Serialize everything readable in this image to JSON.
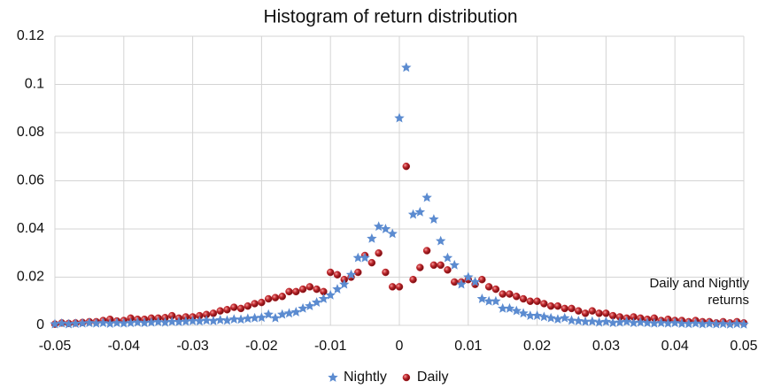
{
  "chart_data": {
    "type": "scatter",
    "title": "Histogram of return distribution",
    "annotation": [
      "Daily and Nightly",
      "returns"
    ],
    "x": [
      -0.05,
      -0.049,
      -0.048,
      -0.047,
      -0.046,
      -0.045,
      -0.044,
      -0.043,
      -0.042,
      -0.041,
      -0.04,
      -0.039,
      -0.038,
      -0.037,
      -0.036,
      -0.035,
      -0.034,
      -0.033,
      -0.032,
      -0.031,
      -0.03,
      -0.029,
      -0.028,
      -0.027,
      -0.026,
      -0.025,
      -0.024,
      -0.023,
      -0.022,
      -0.021,
      -0.02,
      -0.019,
      -0.018,
      -0.017,
      -0.016,
      -0.015,
      -0.014,
      -0.013,
      -0.012,
      -0.011,
      -0.01,
      -0.009,
      -0.008,
      -0.007,
      -0.006,
      -0.005,
      -0.004,
      -0.003,
      -0.002,
      -0.001,
      0,
      0.001,
      0.002,
      0.003,
      0.004,
      0.005,
      0.006,
      0.007,
      0.008,
      0.009,
      0.01,
      0.011,
      0.012,
      0.013,
      0.014,
      0.015,
      0.016,
      0.017,
      0.018,
      0.019,
      0.02,
      0.021,
      0.022,
      0.023,
      0.024,
      0.025,
      0.026,
      0.027,
      0.028,
      0.029,
      0.03,
      0.031,
      0.032,
      0.033,
      0.034,
      0.035,
      0.036,
      0.037,
      0.038,
      0.039,
      0.04,
      0.041,
      0.042,
      0.043,
      0.044,
      0.045,
      0.046,
      0.047,
      0.048,
      0.049,
      0.05
    ],
    "series": [
      {
        "name": "Nightly",
        "color": "#5b8bd0",
        "marker": "star",
        "values": [
          0.0005,
          0.0008,
          0.0005,
          0.0007,
          0.0008,
          0.001,
          0.0008,
          0.001,
          0.0007,
          0.001,
          0.0008,
          0.001,
          0.0012,
          0.001,
          0.0012,
          0.0014,
          0.0012,
          0.0015,
          0.0014,
          0.0016,
          0.0018,
          0.0017,
          0.002,
          0.0018,
          0.0022,
          0.002,
          0.0025,
          0.0024,
          0.0028,
          0.003,
          0.0032,
          0.0045,
          0.003,
          0.0045,
          0.005,
          0.0055,
          0.007,
          0.008,
          0.0095,
          0.011,
          0.0125,
          0.015,
          0.017,
          0.021,
          0.028,
          0.028,
          0.036,
          0.041,
          0.04,
          0.038,
          0.086,
          0.107,
          0.046,
          0.047,
          0.053,
          0.044,
          0.035,
          0.028,
          0.025,
          0.017,
          0.02,
          0.018,
          0.011,
          0.01,
          0.01,
          0.007,
          0.007,
          0.006,
          0.005,
          0.004,
          0.004,
          0.0035,
          0.003,
          0.0025,
          0.003,
          0.002,
          0.0018,
          0.0015,
          0.0016,
          0.0012,
          0.0015,
          0.001,
          0.0012,
          0.0015,
          0.001,
          0.0012,
          0.001,
          0.0008,
          0.001,
          0.0008,
          0.001,
          0.0007,
          0.0006,
          0.0008,
          0.0005,
          0.0007,
          0.0005,
          0.0006,
          0.0004,
          0.0006,
          0.0004
        ]
      },
      {
        "name": "Daily",
        "color": "#c0282d",
        "marker": "ball",
        "values": [
          0.0005,
          0.001,
          0.0008,
          0.001,
          0.0012,
          0.0015,
          0.0015,
          0.002,
          0.0025,
          0.0018,
          0.002,
          0.003,
          0.0025,
          0.0025,
          0.003,
          0.003,
          0.0032,
          0.004,
          0.003,
          0.0035,
          0.0035,
          0.004,
          0.0045,
          0.005,
          0.006,
          0.0065,
          0.0075,
          0.007,
          0.008,
          0.009,
          0.0095,
          0.011,
          0.0115,
          0.012,
          0.014,
          0.014,
          0.015,
          0.016,
          0.015,
          0.014,
          0.022,
          0.021,
          0.019,
          0.02,
          0.022,
          0.029,
          0.026,
          0.03,
          0.022,
          0.016,
          0.016,
          0.066,
          0.019,
          0.024,
          0.031,
          0.025,
          0.025,
          0.023,
          0.018,
          0.018,
          0.019,
          0.017,
          0.019,
          0.016,
          0.015,
          0.013,
          0.013,
          0.012,
          0.011,
          0.01,
          0.01,
          0.009,
          0.008,
          0.008,
          0.007,
          0.007,
          0.006,
          0.005,
          0.006,
          0.005,
          0.005,
          0.004,
          0.0035,
          0.003,
          0.0035,
          0.003,
          0.0025,
          0.003,
          0.002,
          0.0025,
          0.002,
          0.002,
          0.0015,
          0.002,
          0.0015,
          0.0015,
          0.001,
          0.0015,
          0.001,
          0.0015,
          0.001
        ]
      }
    ],
    "xlim": [
      -0.05,
      0.05
    ],
    "xticks": [
      -0.05,
      -0.04,
      -0.03,
      -0.02,
      -0.01,
      0,
      0.01,
      0.02,
      0.03,
      0.04,
      0.05
    ],
    "ylim": [
      0,
      0.12
    ],
    "yticks": [
      0,
      0.02,
      0.04,
      0.06,
      0.08,
      0.1,
      0.12
    ],
    "grid": true,
    "legend": "bottom"
  }
}
